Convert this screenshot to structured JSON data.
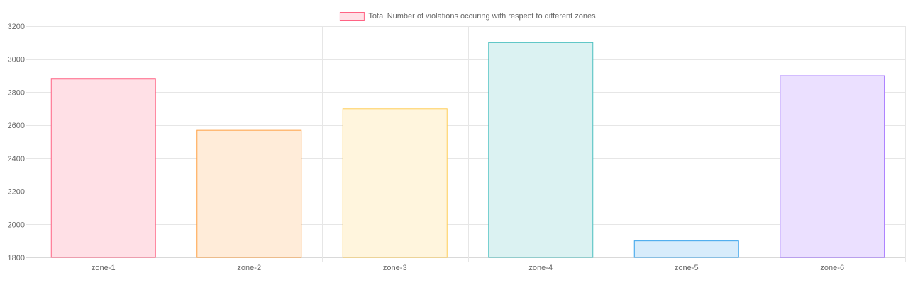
{
  "chart_data": {
    "type": "bar",
    "categories": [
      "zone-1",
      "zone-2",
      "zone-3",
      "zone-4",
      "zone-5",
      "zone-6"
    ],
    "series": [
      {
        "name": "Total Number of violations occuring with respect to different zones",
        "values": [
          2880,
          2570,
          2700,
          3100,
          1900,
          2900
        ]
      }
    ],
    "ylim": [
      1800,
      3200
    ],
    "yticks": [
      1800,
      2000,
      2200,
      2400,
      2600,
      2800,
      3000,
      3200
    ],
    "grid": true,
    "legend_position": "top-center",
    "bar_colors": [
      {
        "fill": "#ffe0e6",
        "stroke": "#ff6384"
      },
      {
        "fill": "#ffecd9",
        "stroke": "#ff9f40"
      },
      {
        "fill": "#fff5dd",
        "stroke": "#ffcd56"
      },
      {
        "fill": "#dbf2f2",
        "stroke": "#4bc0c0"
      },
      {
        "fill": "#d7ecfb",
        "stroke": "#36a2eb"
      },
      {
        "fill": "#ebe0ff",
        "stroke": "#9966ff"
      }
    ],
    "legend_swatch": {
      "fill": "#ffe0e6",
      "stroke": "#ff6384"
    }
  }
}
